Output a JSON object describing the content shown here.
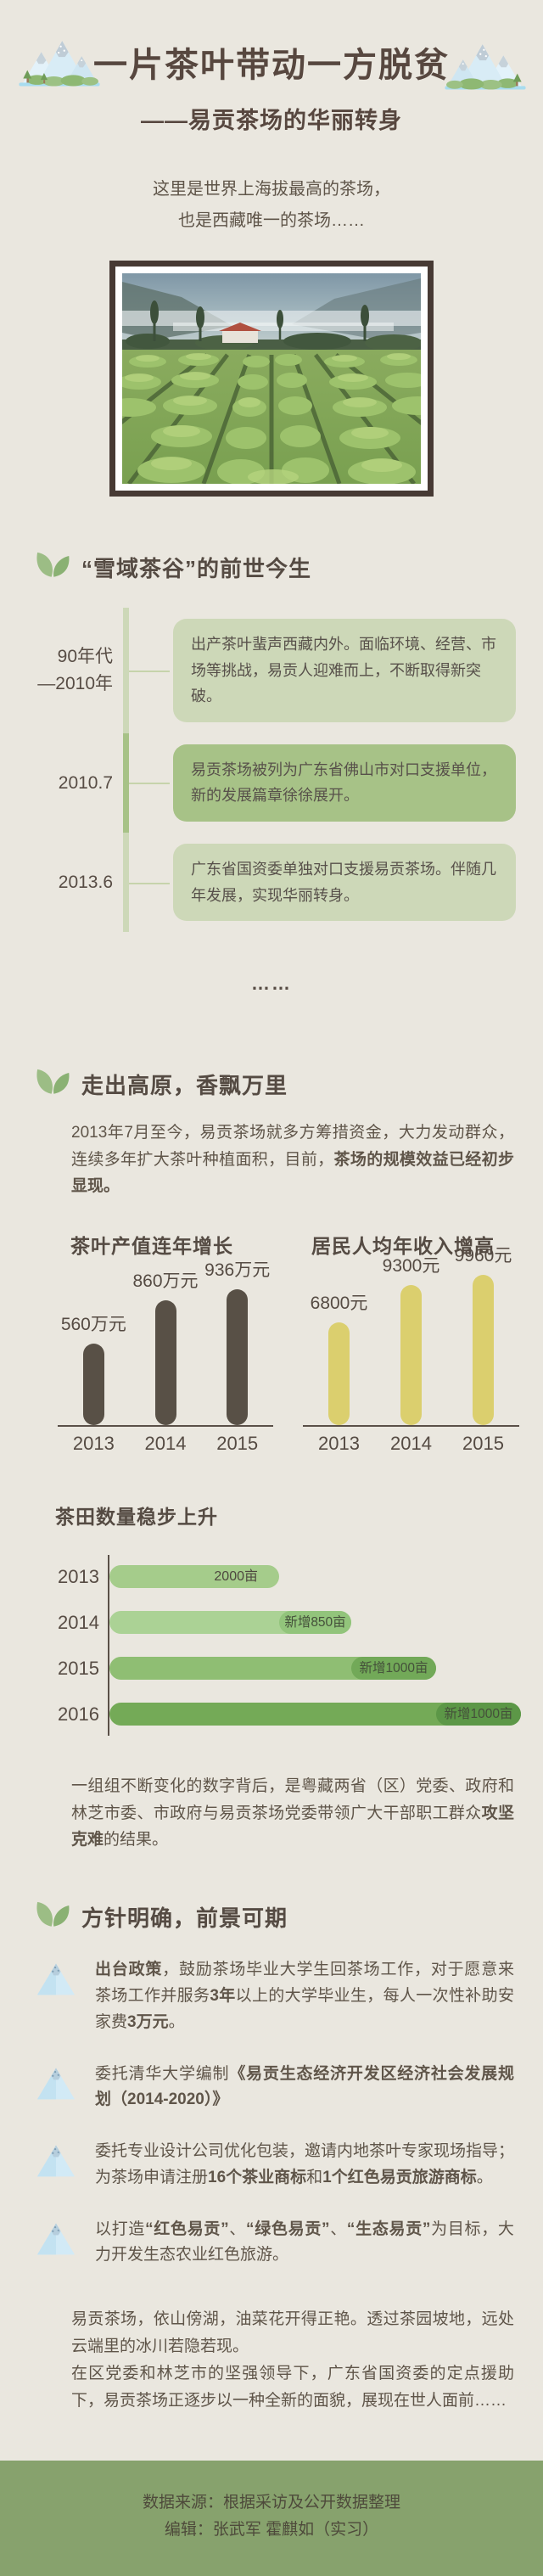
{
  "page": {
    "background": "#eae7df",
    "text_color": "#5f5549",
    "accent_light_green": "#cdd8b8",
    "accent_green": "#a7c287",
    "footer_green": "#87a26d"
  },
  "icons": {
    "header_left": "snow-mountain-icon",
    "header_right": "snow-mountain-icon",
    "section_marker": "tea-leaf-sprout-icon",
    "bullet_marker": "blue-mountain-icon"
  },
  "header": {
    "title": "一片茶叶带动一方脱贫",
    "subtitle": "——易贡茶场的华丽转身"
  },
  "intro": {
    "line1": "这里是世界上海拔最高的茶场，",
    "line2": "也是西藏唯一的茶场……"
  },
  "photo": {
    "description": "易贡茶场茶田，远处雪山云雾与红顶房屋"
  },
  "section1": {
    "heading": "“雪域茶谷”的前世今生",
    "timeline": [
      {
        "period_lines": [
          "90年代",
          "—2010年"
        ],
        "text": "出产茶叶蜚声西藏内外。面临环境、经营、市场等挑战，易贡人迎难而上，不断取得新突破。",
        "tone": "light"
      },
      {
        "period_lines": [
          "2010.7"
        ],
        "text": "易贡茶场被列为广东省佛山市对口支援单位，新的发展篇章徐徐展开。",
        "tone": "dark"
      },
      {
        "period_lines": [
          "2013.6"
        ],
        "text": "广东省国资委单独对口支援易贡茶场。伴随几年发展，实现华丽转身。",
        "tone": "light"
      }
    ],
    "ellipsis": "……"
  },
  "section2": {
    "heading": "走出高原，香飘万里",
    "paragraph": [
      {
        "t": "2013年7月至今，易贡茶场就多方筹措资金，大力发动群众，连续多年扩大茶叶种植面积，目前，",
        "b": false
      },
      {
        "t": "茶场的规模效益已经初步显现。",
        "b": true
      }
    ],
    "paragraph2": [
      {
        "t": "一组组不断变化的数字背后，是粤藏两省（区）党委、政府和林芝市委、市政府与易贡茶场党委带领广大干部职工群众",
        "b": false
      },
      {
        "t": "攻坚克难",
        "b": true
      },
      {
        "t": "的结果。",
        "b": false
      }
    ]
  },
  "chart_data": [
    {
      "type": "bar",
      "title": "茶叶产值连年增长",
      "categories": [
        "2013",
        "2014",
        "2015"
      ],
      "values": [
        560,
        860,
        936
      ],
      "labels": [
        "560万元",
        "860万元",
        "936万元"
      ],
      "unit": "万元",
      "bar_color": "#585046",
      "ylim": [
        0,
        936
      ],
      "grid": false,
      "legend": "none"
    },
    {
      "type": "bar",
      "title": "居民人均年收入增高",
      "categories": [
        "2013",
        "2014",
        "2015"
      ],
      "values": [
        6800,
        9300,
        9960
      ],
      "labels": [
        "6800元",
        "9300元",
        "9960元"
      ],
      "unit": "元",
      "bar_color": "#dbcf6e",
      "ylim": [
        0,
        9960
      ],
      "grid": false,
      "legend": "none"
    },
    {
      "type": "bar-horizontal",
      "title": "茶田数量稳步上升",
      "categories": [
        "2013",
        "2014",
        "2015",
        "2016"
      ],
      "unit": "亩",
      "totals": [
        2000,
        2850,
        3850,
        4850
      ],
      "rows": [
        {
          "base": 2000,
          "added": 0,
          "label": "2000亩",
          "base_color": "#a5cc8b",
          "cap_color": null
        },
        {
          "base": 2000,
          "added": 850,
          "label": "新增850亩",
          "base_color": "#abd295",
          "cap_color": "#92c47b"
        },
        {
          "base": 2850,
          "added": 1000,
          "label": "新增1000亩",
          "base_color": "#8fbe73",
          "cap_color": "#72a958"
        },
        {
          "base": 3850,
          "added": 1000,
          "label": "新增1000亩",
          "base_color": "#74aa57",
          "cap_color": "#5c9747"
        }
      ]
    }
  ],
  "section3": {
    "heading": "方针明确，前景可期",
    "bullets": [
      [
        {
          "t": "出台政策",
          "b": true
        },
        {
          "t": "，鼓励茶场毕业大学生回茶场工作，对于愿意来茶场工作并服务",
          "b": false
        },
        {
          "t": "3年",
          "b": true
        },
        {
          "t": "以上的大学毕业生，每人一次性补助安家费",
          "b": false
        },
        {
          "t": "3万元",
          "b": true
        },
        {
          "t": "。",
          "b": false
        }
      ],
      [
        {
          "t": "委托清华大学编制",
          "b": false
        },
        {
          "t": "《易贡生态经济开发区经济社会发展规划（2014-2020）》",
          "b": true
        }
      ],
      [
        {
          "t": "委托专业设计公司优化包装，邀请内地茶叶专家现场指导；为茶场申请注册",
          "b": false
        },
        {
          "t": "16个茶业商标",
          "b": true
        },
        {
          "t": "和",
          "b": false
        },
        {
          "t": "1个红色易贡旅游商标",
          "b": true
        },
        {
          "t": "。",
          "b": false
        }
      ],
      [
        {
          "t": "以打造",
          "b": false
        },
        {
          "t": "“红色易贡”",
          "b": true
        },
        {
          "t": "、",
          "b": false
        },
        {
          "t": "“绿色易贡”",
          "b": true
        },
        {
          "t": "、",
          "b": false
        },
        {
          "t": "“生态易贡”",
          "b": true
        },
        {
          "t": "为目标，大力开发生态农业红色旅游。",
          "b": false
        }
      ]
    ]
  },
  "outro": {
    "para1": "易贡茶场，依山傍湖，油菜花开得正艳。透过茶园坡地，远处云端里的冰川若隐若现。",
    "para2": "在区党委和林芝市的坚强领导下，广东省国资委的定点援助下，易贡茶场正逐步以一种全新的面貌，展现在世人面前……"
  },
  "footer": {
    "source": "数据来源：根据采访及公开数据整理",
    "editors": "编辑：张武军 霍麒如（实习）",
    "bg": "#87a26d"
  }
}
